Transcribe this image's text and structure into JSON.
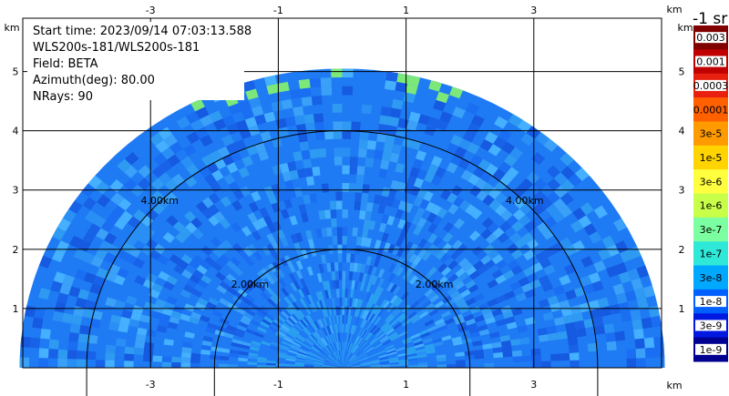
{
  "chart_data": {
    "type": "heatmap",
    "subtype": "lidar-rhi-sector",
    "info_lines": [
      "Start time: 2023/09/14 07:03:13.588",
      "WLS200s-181/WLS200s-181",
      "Field: BETA",
      "Azimuth(deg): 80.00",
      "NRays: 90"
    ],
    "x_unit": "km",
    "y_unit": "km",
    "x_ticks": [
      "-3",
      "-1",
      "1",
      "3"
    ],
    "x_tick_values": [
      -3,
      -1,
      1,
      3
    ],
    "y_ticks": [
      "1",
      "2",
      "3",
      "4",
      "5"
    ],
    "y_tick_values": [
      1,
      2,
      3,
      4,
      5
    ],
    "xlim": [
      -5.0,
      5.0
    ],
    "ylim": [
      0.0,
      5.9
    ],
    "range_rings": [
      {
        "range_km": 2,
        "left_label": "2.00km",
        "right_label": "2.00km"
      },
      {
        "range_km": 4,
        "left_label": "4.00km",
        "right_label": "4.00km"
      }
    ],
    "max_range_km": 5.05,
    "grid": true,
    "colorbar": {
      "title": "-1 sr",
      "position": "right",
      "labels": [
        "0.003",
        "0.001",
        "0.0003",
        "0.0001",
        "3e-5",
        "1e-5",
        "3e-6",
        "1e-6",
        "3e-7",
        "1e-7",
        "3e-8",
        "1e-8",
        "3e-9",
        "1e-9"
      ],
      "colors": [
        "#800000",
        "#c00000",
        "#e82010",
        "#ff6000",
        "#ff9a00",
        "#ffd400",
        "#ffff40",
        "#c8ff48",
        "#7cffa0",
        "#30e8d8",
        "#00a8ff",
        "#0060ff",
        "#0018e0",
        "#000090"
      ]
    },
    "dominant_value_band": [
      "1e-7",
      "3e-8"
    ],
    "colors": {
      "field_main": "#1f7bf4",
      "field_near": "#2aa0f0",
      "field_edge_top": "#7ce87a"
    }
  }
}
